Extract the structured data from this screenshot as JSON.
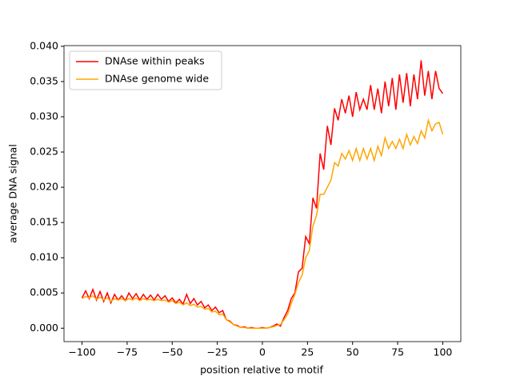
{
  "chart_data": {
    "type": "line",
    "xlabel": "position relative to motif",
    "ylabel": "average DNA signal",
    "x": [
      -100,
      -98,
      -96,
      -94,
      -92,
      -90,
      -88,
      -86,
      -84,
      -82,
      -80,
      -78,
      -76,
      -74,
      -72,
      -70,
      -68,
      -66,
      -64,
      -62,
      -60,
      -58,
      -56,
      -54,
      -52,
      -50,
      -48,
      -46,
      -44,
      -42,
      -40,
      -38,
      -36,
      -34,
      -32,
      -30,
      -28,
      -26,
      -24,
      -22,
      -20,
      -18,
      -16,
      -14,
      -12,
      -10,
      -8,
      -6,
      -4,
      -2,
      0,
      2,
      4,
      6,
      8,
      10,
      12,
      14,
      16,
      18,
      20,
      22,
      24,
      26,
      28,
      30,
      32,
      34,
      36,
      38,
      40,
      42,
      44,
      46,
      48,
      50,
      52,
      54,
      56,
      58,
      60,
      62,
      64,
      66,
      68,
      70,
      72,
      74,
      76,
      78,
      80,
      82,
      84,
      86,
      88,
      90,
      92,
      94,
      96,
      98,
      100
    ],
    "series": [
      {
        "name": "DNAse within peaks",
        "color": "#ff0000",
        "values": [
          0.0043,
          0.0053,
          0.0042,
          0.0055,
          0.004,
          0.0052,
          0.0038,
          0.005,
          0.0036,
          0.0048,
          0.004,
          0.0046,
          0.0039,
          0.005,
          0.0042,
          0.0049,
          0.004,
          0.0048,
          0.0041,
          0.0047,
          0.004,
          0.0048,
          0.0041,
          0.0046,
          0.0038,
          0.0043,
          0.0036,
          0.0041,
          0.0034,
          0.0048,
          0.0035,
          0.0042,
          0.0033,
          0.0038,
          0.0029,
          0.0033,
          0.0025,
          0.003,
          0.0022,
          0.0025,
          0.0012,
          0.001,
          0.0005,
          0.0004,
          0.0001,
          0.0002,
          0.0,
          0.0001,
          0.0,
          0.0,
          0.0001,
          0.0,
          0.0001,
          0.0003,
          0.0006,
          0.0003,
          0.0015,
          0.0025,
          0.0042,
          0.005,
          0.008,
          0.0085,
          0.013,
          0.012,
          0.0185,
          0.017,
          0.0248,
          0.0225,
          0.0287,
          0.026,
          0.0312,
          0.0295,
          0.0325,
          0.0305,
          0.033,
          0.03,
          0.0335,
          0.031,
          0.0325,
          0.031,
          0.0345,
          0.031,
          0.034,
          0.0305,
          0.035,
          0.0315,
          0.0355,
          0.031,
          0.036,
          0.032,
          0.0362,
          0.0315,
          0.036,
          0.0325,
          0.038,
          0.033,
          0.0365,
          0.0325,
          0.0365,
          0.034,
          0.0333
        ]
      },
      {
        "name": "DNAse genome wide",
        "color": "#ffa500",
        "values": [
          0.0042,
          0.0045,
          0.0043,
          0.0046,
          0.0041,
          0.0044,
          0.004,
          0.0043,
          0.0038,
          0.0042,
          0.004,
          0.0042,
          0.0039,
          0.0042,
          0.004,
          0.0043,
          0.0039,
          0.0042,
          0.004,
          0.0041,
          0.0039,
          0.0041,
          0.0039,
          0.004,
          0.0037,
          0.0039,
          0.0035,
          0.0037,
          0.0033,
          0.0036,
          0.0032,
          0.0034,
          0.003,
          0.0031,
          0.0027,
          0.0028,
          0.0023,
          0.0024,
          0.0019,
          0.002,
          0.0012,
          0.0009,
          0.0005,
          0.0003,
          0.0001,
          0.0001,
          0.0,
          0.0,
          0.0,
          0.0,
          0.0,
          0.0,
          0.0001,
          0.0002,
          0.0004,
          0.0005,
          0.0012,
          0.002,
          0.0035,
          0.0048,
          0.0065,
          0.0075,
          0.01,
          0.011,
          0.0145,
          0.016,
          0.019,
          0.019,
          0.02,
          0.021,
          0.0235,
          0.023,
          0.0248,
          0.024,
          0.0252,
          0.0238,
          0.0255,
          0.0238,
          0.0255,
          0.024,
          0.0255,
          0.0238,
          0.0258,
          0.0245,
          0.027,
          0.0255,
          0.0265,
          0.0255,
          0.0268,
          0.0255,
          0.0275,
          0.026,
          0.0272,
          0.0262,
          0.028,
          0.027,
          0.0295,
          0.028,
          0.029,
          0.0292,
          0.0275
        ]
      }
    ],
    "xlim": [
      -110,
      110
    ],
    "ylim": [
      -0.0019,
      0.0401
    ],
    "xticks": [
      {
        "value": -100,
        "label": "−100"
      },
      {
        "value": -75,
        "label": "−75"
      },
      {
        "value": -50,
        "label": "−50"
      },
      {
        "value": -25,
        "label": "−25"
      },
      0,
      25,
      50,
      75,
      100
    ],
    "yticks": [
      {
        "value": 0,
        "label": "0.000"
      },
      {
        "value": 0.005,
        "label": "0.005"
      },
      {
        "value": 0.01,
        "label": "0.010"
      },
      {
        "value": 0.015,
        "label": "0.015"
      },
      {
        "value": 0.02,
        "label": "0.020"
      },
      {
        "value": 0.025,
        "label": "0.025"
      },
      {
        "value": 0.03,
        "label": "0.030"
      },
      {
        "value": 0.035,
        "label": "0.035"
      },
      {
        "value": 0.04,
        "label": "0.040"
      }
    ],
    "legend": "upper left"
  }
}
